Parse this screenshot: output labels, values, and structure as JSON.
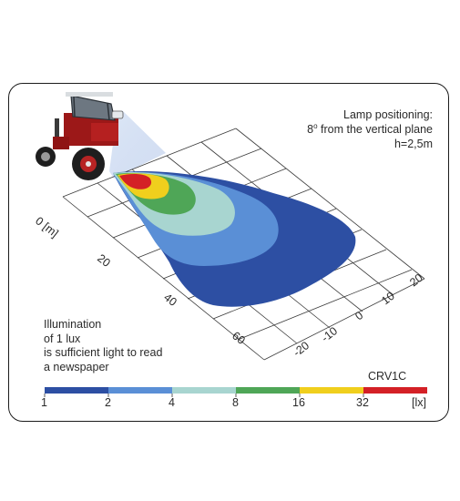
{
  "lamp_positioning": {
    "title": "Lamp positioning:",
    "angle_value": "8",
    "angle_unit": "o",
    "angle_text": " from the vertical plane",
    "height": "h=2,5m"
  },
  "note_lines": [
    "Illumination",
    "of 1 lux",
    "is sufficient light to read",
    "a newspaper"
  ],
  "model_code": "CRV1C",
  "axis_x": {
    "label": "0 [m]",
    "ticks": [
      "20",
      "40",
      "60"
    ]
  },
  "axis_y": {
    "ticks": [
      "20",
      "10",
      "0",
      "-10",
      "-20"
    ]
  },
  "color_scale": {
    "unit": "[lx]",
    "thresholds": [
      "1",
      "2",
      "4",
      "8",
      "16",
      "32"
    ],
    "colors": [
      "#2d4fa3",
      "#5a8fd6",
      "#a8d5d0",
      "#4fa657",
      "#f0cf1d",
      "#d42026"
    ]
  },
  "illuminance_zones": [
    {
      "lux_from": "1",
      "lux_to": "2",
      "color": "#2d4fa3"
    },
    {
      "lux_from": "2",
      "lux_to": "4",
      "color": "#5a8fd6"
    },
    {
      "lux_from": "4",
      "lux_to": "8",
      "color": "#a8d5d0"
    },
    {
      "lux_from": "8",
      "lux_to": "16",
      "color": "#4fa657"
    },
    {
      "lux_from": "16",
      "lux_to": "32",
      "color": "#f0cf1d"
    },
    {
      "lux_from": "32",
      "lux_to": "",
      "color": "#d42026"
    }
  ]
}
